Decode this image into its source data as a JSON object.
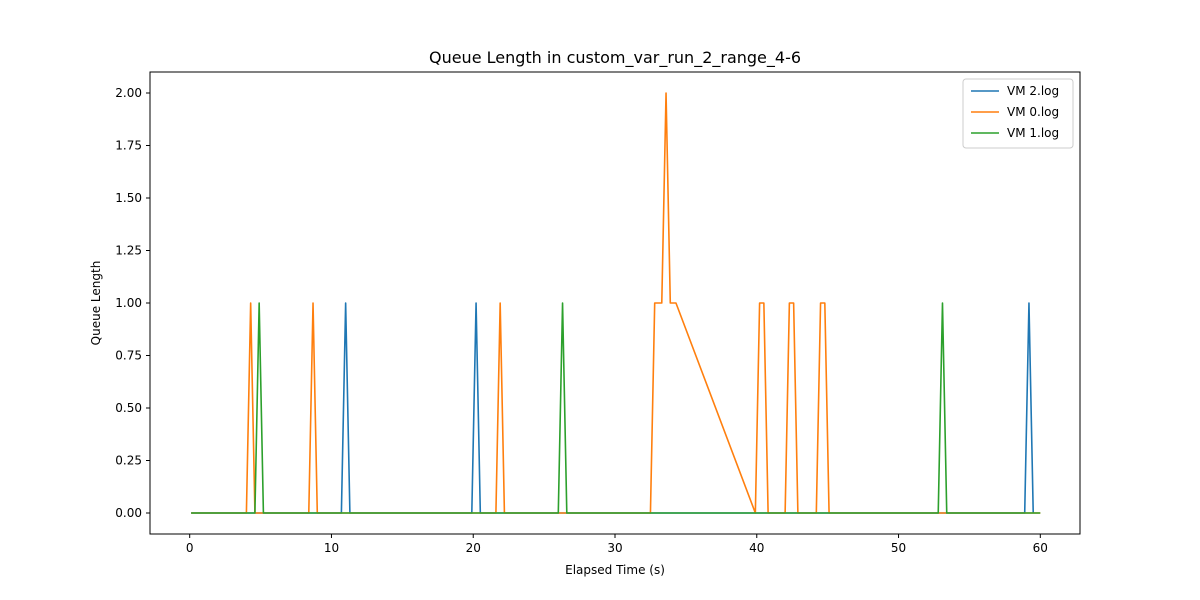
{
  "chart_data": {
    "type": "line",
    "title": "Queue Length in custom_var_run_2_range_4-6",
    "xlabel": "Elapsed Time (s)",
    "ylabel": "Queue Length",
    "xlim": [
      -2.8,
      62.8
    ],
    "ylim": [
      -0.1,
      2.1
    ],
    "xticks": [
      0,
      10,
      20,
      30,
      40,
      50,
      60
    ],
    "xtick_labels": [
      "0",
      "10",
      "20",
      "30",
      "40",
      "50",
      "60"
    ],
    "yticks": [
      0,
      0.25,
      0.5,
      0.75,
      1.0,
      1.25,
      1.5,
      1.75,
      2.0
    ],
    "ytick_labels": [
      "0.00",
      "0.25",
      "0.50",
      "0.75",
      "1.00",
      "1.25",
      "1.50",
      "1.75",
      "2.00"
    ],
    "grid": false,
    "legend_position": "top-right",
    "series": [
      {
        "name": "VM 2.log",
        "color": "#1f77b4",
        "x": [
          0.1,
          10.7,
          11.0,
          11.3,
          19.9,
          20.2,
          20.5,
          58.9,
          59.2,
          59.5
        ],
        "y": [
          0,
          0,
          1,
          0,
          0,
          1,
          0,
          0,
          1,
          0
        ]
      },
      {
        "name": "VM 0.log",
        "color": "#ff7f0e",
        "x": [
          0.1,
          4.0,
          4.3,
          4.6,
          8.4,
          8.7,
          9.0,
          21.6,
          21.9,
          22.2,
          32.5,
          32.8,
          33.3,
          33.6,
          33.9,
          34.3,
          39.9,
          40.2,
          40.5,
          40.8,
          42.0,
          42.3,
          42.6,
          42.9,
          44.2,
          44.5,
          44.8,
          45.1,
          60.0
        ],
        "y": [
          0,
          0,
          1,
          0,
          0,
          1,
          0,
          0,
          1,
          0,
          0,
          1,
          1,
          2,
          1,
          1,
          0,
          1,
          1,
          0,
          0,
          1,
          1,
          0,
          0,
          1,
          1,
          0,
          0
        ]
      },
      {
        "name": "VM 1.log",
        "color": "#2ca02c",
        "x": [
          0.1,
          4.6,
          4.9,
          5.2,
          26.0,
          26.3,
          26.6,
          52.8,
          53.1,
          53.4,
          60.0
        ],
        "y": [
          0,
          0,
          1,
          0,
          0,
          1,
          0,
          0,
          1,
          0,
          0
        ]
      }
    ]
  }
}
